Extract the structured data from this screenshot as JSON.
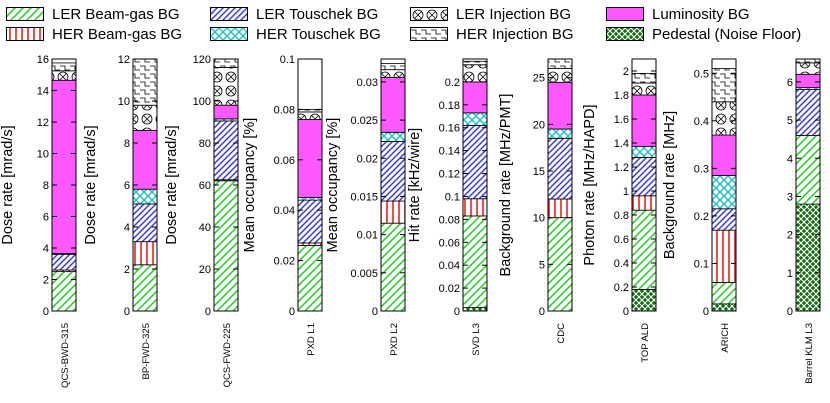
{
  "legend": [
    {
      "key": "ler_bg",
      "label": "LER Beam-gas BG",
      "pattern": "ler_bg"
    },
    {
      "key": "ler_tou",
      "label": "LER Touschek BG",
      "pattern": "ler_tou"
    },
    {
      "key": "ler_inj",
      "label": "LER Injection BG",
      "pattern": "ler_inj"
    },
    {
      "key": "lumi",
      "label": "Luminosity BG",
      "pattern": "lumi"
    },
    {
      "key": "her_bg",
      "label": "HER Beam-gas BG",
      "pattern": "her_bg"
    },
    {
      "key": "her_tou",
      "label": "HER Touschek BG",
      "pattern": "her_tou"
    },
    {
      "key": "her_inj",
      "label": "HER Injection BG",
      "pattern": "her_inj"
    },
    {
      "key": "ped",
      "label": "Pedestal (Noise Floor)",
      "pattern": "ped"
    }
  ],
  "colors": {
    "ler_bg": "#33cc33",
    "her_bg": "#e8231e",
    "ler_tou": "#3b3bd6",
    "her_tou": "#18c0c0",
    "ler_inj": "#000000",
    "her_inj": "#000000",
    "lumi": "#ff59ff",
    "ped": "#136b13"
  },
  "chart_data": [
    {
      "type": "bar",
      "stacked": true,
      "category": "QCS-BWD-315",
      "ylabel": "Dose rate [mrad/s]",
      "ylim": [
        0,
        16
      ],
      "ticks": [
        "0",
        "2",
        "4",
        "6",
        "8",
        "10",
        "12",
        "14",
        "16"
      ],
      "series": [
        {
          "key": "ped",
          "value": 0
        },
        {
          "key": "ler_bg",
          "value": 2.5
        },
        {
          "key": "her_bg",
          "value": 0.1
        },
        {
          "key": "ler_tou",
          "value": 1.0
        },
        {
          "key": "her_tou",
          "value": 0.05
        },
        {
          "key": "lumi",
          "value": 11.0
        },
        {
          "key": "ler_inj",
          "value": 0.6
        },
        {
          "key": "her_inj",
          "value": 0.5
        }
      ]
    },
    {
      "type": "bar",
      "stacked": true,
      "category": "BP-FWD-325",
      "ylabel": "Dose rate [mrad/s]",
      "ylim": [
        0,
        12
      ],
      "ticks": [
        "0",
        "2",
        "4",
        "6",
        "8",
        "10",
        "12"
      ],
      "series": [
        {
          "key": "ped",
          "value": 0
        },
        {
          "key": "ler_bg",
          "value": 2.2
        },
        {
          "key": "her_bg",
          "value": 1.1
        },
        {
          "key": "ler_tou",
          "value": 1.8
        },
        {
          "key": "her_tou",
          "value": 0.7
        },
        {
          "key": "lumi",
          "value": 2.8
        },
        {
          "key": "ler_inj",
          "value": 1.2
        },
        {
          "key": "her_inj",
          "value": 2.2
        }
      ]
    },
    {
      "type": "bar",
      "stacked": true,
      "category": "QCS-FWD-225",
      "ylabel": "Dose rate [mrad/s]",
      "ylim": [
        0,
        120
      ],
      "ticks": [
        "0",
        "20",
        "40",
        "60",
        "80",
        "100",
        "120"
      ],
      "series": [
        {
          "key": "ped",
          "value": 0
        },
        {
          "key": "ler_bg",
          "value": 62
        },
        {
          "key": "her_bg",
          "value": 0.5
        },
        {
          "key": "ler_tou",
          "value": 28
        },
        {
          "key": "her_tou",
          "value": 1
        },
        {
          "key": "lumi",
          "value": 6.5
        },
        {
          "key": "ler_inj",
          "value": 18
        },
        {
          "key": "her_inj",
          "value": 4
        }
      ]
    },
    {
      "type": "bar",
      "stacked": true,
      "category": "PXD L1",
      "ylabel": "Mean occupancy [%]",
      "ylim": [
        0,
        0.1
      ],
      "ticks": [
        "0",
        "0.02",
        "0.04",
        "0.06",
        "0.08",
        "0.1"
      ],
      "series": [
        {
          "key": "ped",
          "value": 0
        },
        {
          "key": "ler_bg",
          "value": 0.026
        },
        {
          "key": "her_bg",
          "value": 0.001
        },
        {
          "key": "ler_tou",
          "value": 0.017
        },
        {
          "key": "her_tou",
          "value": 0.001
        },
        {
          "key": "lumi",
          "value": 0.031
        },
        {
          "key": "ler_inj",
          "value": 0.003
        },
        {
          "key": "her_inj",
          "value": 0.001
        }
      ]
    },
    {
      "type": "bar",
      "stacked": true,
      "category": "PXD L2",
      "ylabel": "Mean occupancy [%]",
      "ylim": [
        0,
        0.033
      ],
      "ticks": [
        "0",
        "0.005",
        "0.01",
        "0.015",
        "0.02",
        "0.025",
        "0.03"
      ],
      "series": [
        {
          "key": "ped",
          "value": 0
        },
        {
          "key": "ler_bg",
          "value": 0.0115
        },
        {
          "key": "her_bg",
          "value": 0.0029
        },
        {
          "key": "ler_tou",
          "value": 0.0078
        },
        {
          "key": "her_tou",
          "value": 0.0012
        },
        {
          "key": "lumi",
          "value": 0.0072
        },
        {
          "key": "ler_inj",
          "value": 0.001
        },
        {
          "key": "her_inj",
          "value": 0.0008
        }
      ]
    },
    {
      "type": "bar",
      "stacked": true,
      "category": "SVD L3",
      "ylabel": "Hit rate [kHz/wire]",
      "ylim": [
        0,
        0.22
      ],
      "ticks": [
        "0",
        "0.02",
        "0.04",
        "0.06",
        "0.08",
        "0.1",
        "0.12",
        "0.14",
        "0.16",
        "0.18",
        "0.2"
      ],
      "series": [
        {
          "key": "ped",
          "value": 0.003
        },
        {
          "key": "ler_bg",
          "value": 0.08
        },
        {
          "key": "her_bg",
          "value": 0.015
        },
        {
          "key": "ler_tou",
          "value": 0.064
        },
        {
          "key": "her_tou",
          "value": 0.011
        },
        {
          "key": "lumi",
          "value": 0.027
        },
        {
          "key": "ler_inj",
          "value": 0.015
        },
        {
          "key": "her_inj",
          "value": 0.003
        }
      ]
    },
    {
      "type": "bar",
      "stacked": true,
      "category": "CDC",
      "ylabel": "Background rate [MHz/PMT]",
      "ylim": [
        0,
        27
      ],
      "ticks": [
        "0",
        "5",
        "10",
        "15",
        "20",
        "25"
      ],
      "series": [
        {
          "key": "ped",
          "value": 0
        },
        {
          "key": "ler_bg",
          "value": 10
        },
        {
          "key": "her_bg",
          "value": 2.0
        },
        {
          "key": "ler_tou",
          "value": 6.5
        },
        {
          "key": "her_tou",
          "value": 1.0
        },
        {
          "key": "lumi",
          "value": 5.0
        },
        {
          "key": "ler_inj",
          "value": 1.5
        },
        {
          "key": "her_inj",
          "value": 1.4
        }
      ]
    },
    {
      "type": "bar",
      "stacked": true,
      "category": "TOP ALD",
      "ylabel": "Photon rate [MHz/HAPD]",
      "ylim": [
        0,
        2.1
      ],
      "ticks": [
        "0",
        "0.2",
        "0.4",
        "0.6",
        "0.8",
        "1",
        "1.2",
        "1.4",
        "1.6",
        "1.8",
        "2"
      ],
      "series": [
        {
          "key": "ped",
          "value": 0.18
        },
        {
          "key": "ler_bg",
          "value": 0.66
        },
        {
          "key": "her_bg",
          "value": 0.12
        },
        {
          "key": "ler_tou",
          "value": 0.32
        },
        {
          "key": "her_tou",
          "value": 0.09
        },
        {
          "key": "lumi",
          "value": 0.43
        },
        {
          "key": "ler_inj",
          "value": 0.1
        },
        {
          "key": "her_inj",
          "value": 0.08
        }
      ]
    },
    {
      "type": "bar",
      "stacked": true,
      "category": "ARICH",
      "ylabel": "Background rate [MHz]",
      "ylim": [
        0,
        0.53
      ],
      "ticks": [
        "0",
        "0.1",
        "0.2",
        "0.3",
        "0.4",
        "0.5"
      ],
      "series": [
        {
          "key": "ped",
          "value": 0.015
        },
        {
          "key": "ler_bg",
          "value": 0.045
        },
        {
          "key": "her_bg",
          "value": 0.11
        },
        {
          "key": "ler_tou",
          "value": 0.045
        },
        {
          "key": "her_tou",
          "value": 0.07
        },
        {
          "key": "lumi",
          "value": 0.085
        },
        {
          "key": "ler_inj",
          "value": 0.07
        },
        {
          "key": "her_inj",
          "value": 0.07
        }
      ]
    },
    {
      "type": "bar",
      "stacked": true,
      "category": "Barrel KLM L3",
      "ylabel": "",
      "ylim": [
        0,
        6.6
      ],
      "ticks": [
        "0",
        "1",
        "2",
        "3",
        "4",
        "5",
        "6"
      ],
      "series": [
        {
          "key": "ped",
          "value": 2.8
        },
        {
          "key": "ler_bg",
          "value": 1.8
        },
        {
          "key": "her_bg",
          "value": 0
        },
        {
          "key": "ler_tou",
          "value": 1.2
        },
        {
          "key": "her_tou",
          "value": 0.05
        },
        {
          "key": "lumi",
          "value": 0.35
        },
        {
          "key": "ler_inj",
          "value": 0.3
        },
        {
          "key": "her_inj",
          "value": 0.15
        }
      ]
    }
  ]
}
